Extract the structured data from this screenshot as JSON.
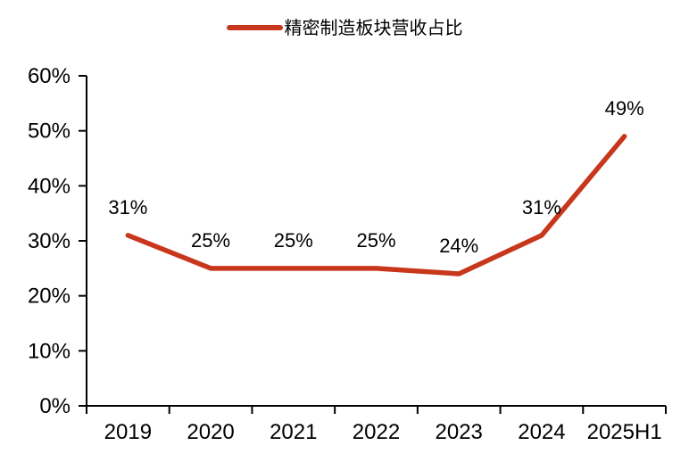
{
  "legend": {
    "label": "精密制造板块营收占比"
  },
  "chart_data": {
    "type": "line",
    "title": "",
    "xlabel": "",
    "ylabel": "",
    "categories": [
      "2019",
      "2020",
      "2021",
      "2022",
      "2023",
      "2024",
      "2025H1"
    ],
    "series": [
      {
        "name": "精密制造板块营收占比",
        "values": [
          31,
          25,
          25,
          25,
          24,
          31,
          49
        ],
        "color": "#C8371C"
      }
    ],
    "data_labels": [
      "31%",
      "25%",
      "25%",
      "25%",
      "24%",
      "31%",
      "49%"
    ],
    "ylim": [
      0,
      60
    ],
    "ytick_step": 10,
    "ytick_labels": [
      "0%",
      "10%",
      "20%",
      "30%",
      "40%",
      "50%",
      "60%"
    ],
    "grid": false,
    "legend_position": "top-center",
    "axis_color": "#000000",
    "text_color": "#000000"
  }
}
